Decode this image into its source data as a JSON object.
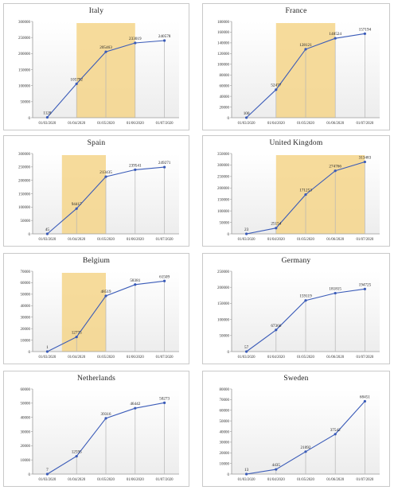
{
  "chart_data": [
    {
      "type": "line",
      "title": "Italy",
      "x": [
        "01/03/2020",
        "01/04/2020",
        "01/05/2020",
        "01/06/2020",
        "01/07/2020"
      ],
      "values": [
        1128,
        105792,
        205463,
        233019,
        240578
      ],
      "data_labels": [
        "1128",
        "105792",
        "205463",
        "233019",
        "240578"
      ],
      "ylim": [
        0,
        300000
      ],
      "yticks": [
        "0",
        "50000",
        "100000",
        "150000",
        "200000",
        "250000",
        "300000"
      ],
      "highlight": {
        "from": "01/04/2020",
        "to": "01/06/2020",
        "color": "#f5d58a"
      },
      "line_color": "#3a5bb8"
    },
    {
      "type": "line",
      "title": "France",
      "x": [
        "01/03/2020",
        "01/04/2020",
        "01/05/2020",
        "01/06/2020",
        "01/07/2020"
      ],
      "values": [
        100,
        52477,
        128121,
        148524,
        157194
      ],
      "data_labels": [
        "100",
        "52477",
        "128121",
        "148524",
        "157194"
      ],
      "ylim": [
        0,
        180000
      ],
      "yticks": [
        "0",
        "20000",
        "40000",
        "60000",
        "80000",
        "100000",
        "120000",
        "140000",
        "160000",
        "180000"
      ],
      "highlight": {
        "from": "01/04/2020",
        "to": "01/06/2020",
        "color": "#f5d58a"
      },
      "line_color": "#3a5bb8"
    },
    {
      "type": "line",
      "title": "Spain",
      "x": [
        "01/03/2020",
        "01/04/2020",
        "01/05/2020",
        "01/06/2020",
        "01/07/2020"
      ],
      "values": [
        45,
        94417,
        213435,
        239541,
        249271
      ],
      "data_labels": [
        "45",
        "94417",
        "213435",
        "239541",
        "249271"
      ],
      "ylim": [
        0,
        300000
      ],
      "yticks": [
        "0",
        "50000",
        "100000",
        "150000",
        "200000",
        "250000",
        "300000"
      ],
      "highlight": {
        "from": "01/03/2020",
        "to": "01/05/2020",
        "color": "#f5d58a",
        "start_frac": 0.5
      },
      "line_color": "#3a5bb8"
    },
    {
      "type": "line",
      "title": "United Kingdom",
      "x": [
        "01/03/2020",
        "01/04/2020",
        "01/05/2020",
        "01/06/2020",
        "01/07/2020"
      ],
      "values": [
        23,
        25154,
        171253,
        274766,
        313483
      ],
      "data_labels": [
        "23",
        "25154",
        "171253",
        "274766",
        "313483"
      ],
      "ylim": [
        0,
        350000
      ],
      "yticks": [
        "0",
        "50000",
        "100000",
        "150000",
        "200000",
        "250000",
        "300000",
        "350000"
      ],
      "highlight": {
        "from": "01/04/2020",
        "to": "01/07/2020",
        "color": "#f5d58a"
      },
      "line_color": "#3a5bb8"
    },
    {
      "type": "line",
      "title": "Belgium",
      "x": [
        "01/03/2020",
        "01/04/2020",
        "01/05/2020",
        "01/06/2020",
        "01/07/2020"
      ],
      "values": [
        1,
        12775,
        48519,
        58381,
        61509
      ],
      "data_labels": [
        "1",
        "12775",
        "48519",
        "58381",
        "61509"
      ],
      "ylim": [
        0,
        70000
      ],
      "yticks": [
        "0",
        "10000",
        "20000",
        "30000",
        "40000",
        "50000",
        "60000",
        "70000"
      ],
      "highlight": {
        "from": "01/03/2020",
        "to": "01/05/2020",
        "color": "#f5d58a",
        "start_frac": 0.5
      },
      "line_color": "#3a5bb8"
    },
    {
      "type": "line",
      "title": "Germany",
      "x": [
        "01/03/2020",
        "01/04/2020",
        "01/05/2020",
        "01/06/2020",
        "01/07/2020"
      ],
      "values": [
        57,
        67366,
        159119,
        181815,
        194725
      ],
      "data_labels": [
        "57",
        "67366",
        "159119",
        "181815",
        "194725"
      ],
      "ylim": [
        0,
        250000
      ],
      "yticks": [
        "0",
        "50000",
        "100000",
        "150000",
        "200000",
        "250000"
      ],
      "line_color": "#3a5bb8"
    },
    {
      "type": "line",
      "title": "Netherlands",
      "x": [
        "01/03/2020",
        "01/04/2020",
        "01/05/2020",
        "01/06/2020",
        "01/07/2020"
      ],
      "values": [
        7,
        12595,
        39316,
        46442,
        50273
      ],
      "data_labels": [
        "7",
        "12595",
        "39316",
        "46442",
        "50273"
      ],
      "ylim": [
        0,
        60000
      ],
      "yticks": [
        "0",
        "10000",
        "20000",
        "30000",
        "40000",
        "50000",
        "60000"
      ],
      "line_color": "#3a5bb8"
    },
    {
      "type": "line",
      "title": "Sweden",
      "x": [
        "01/03/2020",
        "01/04/2020",
        "01/05/2020",
        "01/06/2020",
        "01/07/2020"
      ],
      "values": [
        13,
        4435,
        21092,
        37542,
        68451
      ],
      "data_labels": [
        "13",
        "4435",
        "21092",
        "37542",
        "68451"
      ],
      "ylim": [
        0,
        80000
      ],
      "yticks": [
        "0",
        "10000",
        "20000",
        "30000",
        "40000",
        "50000",
        "60000",
        "70000",
        "80000"
      ],
      "line_color": "#3a5bb8"
    }
  ]
}
